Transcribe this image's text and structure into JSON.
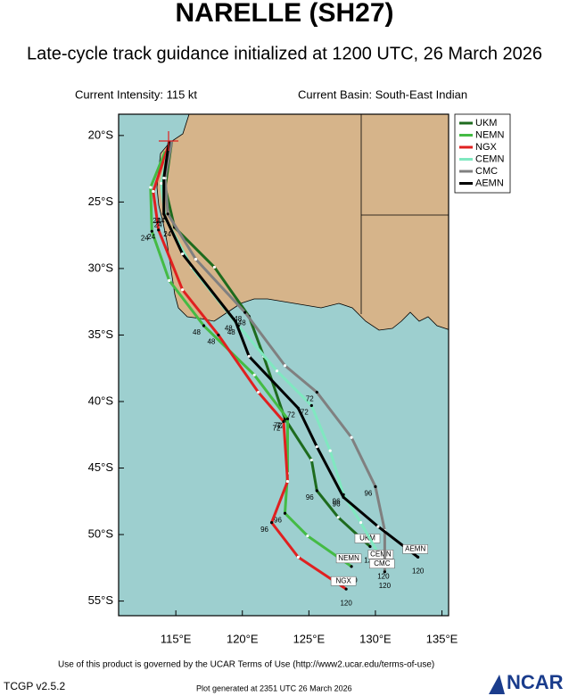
{
  "title": "NARELLE (SH27)",
  "subtitle": "Late-cycle track guidance initialized at 1200 UTC, 26 March 2026",
  "current_intensity": "Current Intensity: 115 kt",
  "current_basin": "Current Basin: South-East Indian",
  "footer": {
    "terms": "Use of this product is governed by the UCAR Terms of Use (http://www2.ucar.edu/terms-of-use)",
    "version": "TCGP v2.5.2",
    "generated": "Plot generated at 2351 UTC   26 March 2026",
    "logo": "NCAR"
  },
  "chart_data": {
    "type": "line",
    "xlim": [
      110.7,
      135.5
    ],
    "ylim": [
      -56.1,
      -18.4
    ],
    "xticks": [
      {
        "value": 115,
        "label": "115°E"
      },
      {
        "value": 120,
        "label": "120°E"
      },
      {
        "value": 125,
        "label": "125°E"
      },
      {
        "value": 130,
        "label": "130°E"
      },
      {
        "value": 135,
        "label": "135°E"
      }
    ],
    "yticks": [
      {
        "value": -20,
        "label": "20°S"
      },
      {
        "value": -25,
        "label": "25°S"
      },
      {
        "value": -30,
        "label": "30°S"
      },
      {
        "value": -35,
        "label": "35°S"
      },
      {
        "value": -40,
        "label": "40°S"
      },
      {
        "value": -45,
        "label": "45°S"
      },
      {
        "value": -50,
        "label": "50°S"
      },
      {
        "value": -55,
        "label": "55°S"
      }
    ],
    "hour_labels": [
      "24",
      "48",
      "72",
      "96",
      "120"
    ],
    "series": [
      {
        "name": "UKM",
        "color": "#1e6b1e",
        "x": [
          114.7,
          114.2,
          114.9,
          117.9,
          120.5,
          121.6,
          123.2,
          125.2,
          125.6,
          127.2,
          129.6
        ],
        "values": [
          -20.4,
          -23.9,
          -26.9,
          -29.9,
          -33.6,
          -36.6,
          -41.3,
          -44.4,
          -46.7,
          -48.7,
          -50.9
        ]
      },
      {
        "name": "NEMN",
        "color": "#44bb44",
        "x": [
          114.2,
          113.1,
          113.2,
          114.5,
          117.1,
          120.9,
          123.4,
          123.4,
          123.2,
          124.9,
          128.2
        ],
        "values": [
          -21.2,
          -23.9,
          -27.2,
          -30.9,
          -34.3,
          -38.0,
          -41.3,
          -45.4,
          -48.4,
          -50.1,
          -52.4
        ]
      },
      {
        "name": "NGX",
        "color": "#e02020",
        "x": [
          114.4,
          113.3,
          113.7,
          115.5,
          118.2,
          121.2,
          123.1,
          123.4,
          122.2,
          124.2,
          127.8
        ],
        "values": [
          -20.9,
          -24.2,
          -27.1,
          -31.6,
          -35.0,
          -39.3,
          -41.5,
          -46.0,
          -49.1,
          -51.7,
          -54.1
        ]
      },
      {
        "name": "CEMN",
        "color": "#80e8c0",
        "x": [
          114.5,
          113.9,
          114.2,
          116.2,
          119.7,
          122.6,
          125.2,
          126.6,
          127.6,
          128.9,
          130.6
        ],
        "values": [
          -20.7,
          -23.6,
          -26.2,
          -29.9,
          -34.3,
          -37.7,
          -40.3,
          -43.7,
          -47.0,
          -49.1,
          -52.1
        ]
      },
      {
        "name": "CMC",
        "color": "#808080",
        "x": [
          114.7,
          114.2,
          114.4,
          116.5,
          120.2,
          123.2,
          125.6,
          128.2,
          130.0,
          130.7,
          130.7
        ],
        "values": [
          -20.4,
          -23.2,
          -25.9,
          -29.3,
          -33.3,
          -37.3,
          -39.3,
          -42.7,
          -46.4,
          -49.7,
          -52.8
        ]
      },
      {
        "name": "AEMN",
        "color": "#000000",
        "x": [
          114.5,
          114.1,
          114.1,
          115.5,
          119.5,
          120.5,
          124.2,
          125.6,
          127.6,
          130.2,
          133.2
        ],
        "values": [
          -20.4,
          -23.2,
          -25.9,
          -28.9,
          -34.0,
          -36.6,
          -40.5,
          -43.4,
          -47.2,
          -49.4,
          -51.7
        ]
      }
    ]
  }
}
